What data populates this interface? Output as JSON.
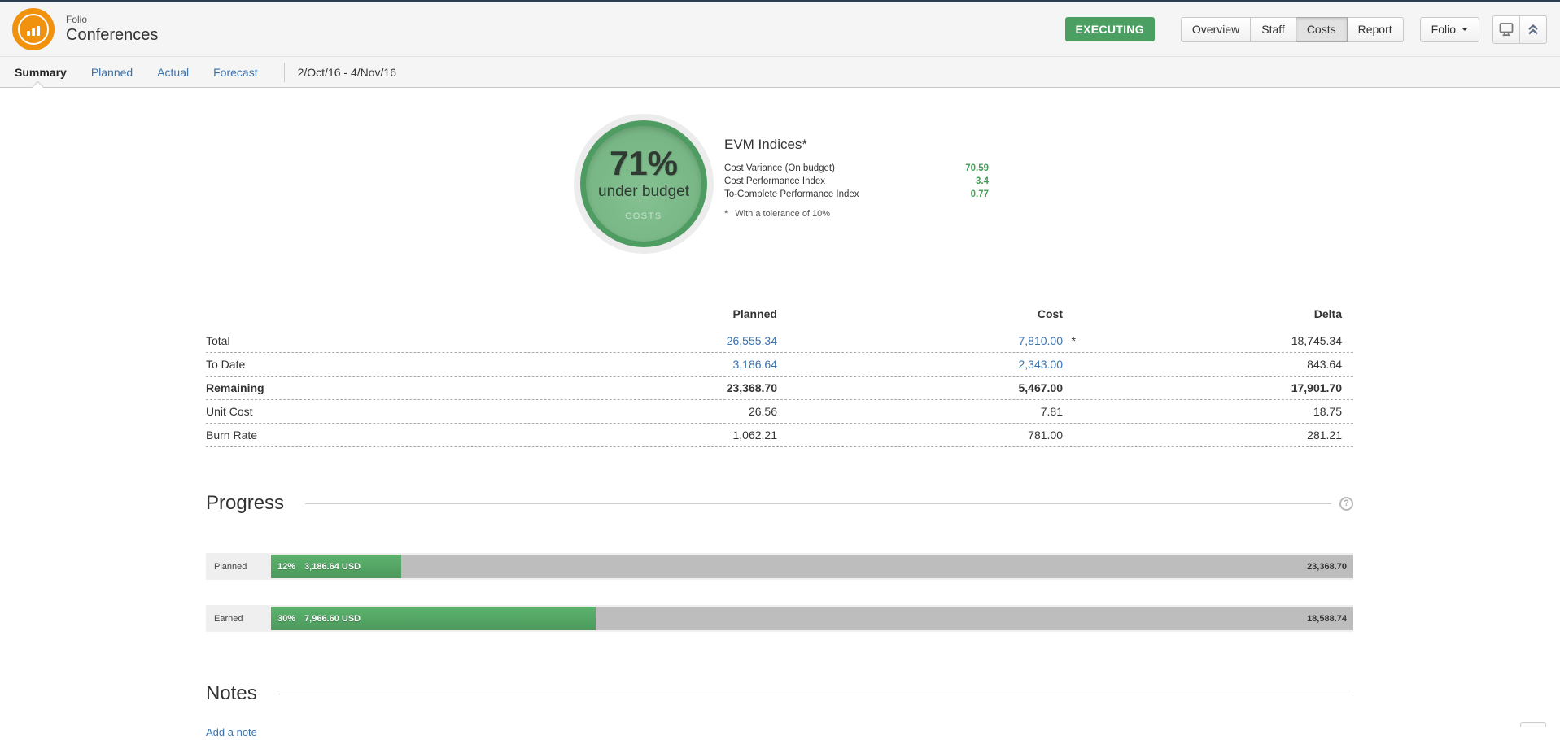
{
  "header": {
    "app_label": "Folio",
    "title": "Conferences",
    "status_badge": "EXECUTING",
    "nav_buttons": {
      "overview": "Overview",
      "staff": "Staff",
      "costs": "Costs",
      "report": "Report"
    },
    "active_nav": "Costs",
    "menu_button_label": "Folio",
    "icons": {
      "display": "monitor-icon",
      "collapse": "double-chevron-up-icon"
    }
  },
  "tabs": {
    "summary": "Summary",
    "planned": "Planned",
    "actual": "Actual",
    "forecast": "Forecast",
    "active": "Summary",
    "date_range": "2/Oct/16  - 4/Nov/16"
  },
  "gauge": {
    "value": "71%",
    "label": "under budget",
    "category": "COSTS"
  },
  "evm": {
    "title": "EVM Indices*",
    "rows": [
      {
        "label": "Cost Variance (On budget)",
        "value": "70.59"
      },
      {
        "label": "Cost Performance Index",
        "value": "3.4"
      },
      {
        "label": "To-Complete Performance Index",
        "value": "0.77"
      }
    ],
    "footnote_star": "*",
    "footnote": "With a tolerance of 10%"
  },
  "cost_table": {
    "columns": {
      "planned": "Planned",
      "cost": "Cost",
      "delta": "Delta"
    },
    "rows": [
      {
        "label": "Total",
        "planned": "26,555.34",
        "cost": "7,810.00",
        "cost_note": "*",
        "delta": "18,745.34"
      },
      {
        "label": "To Date",
        "planned": "3,186.64",
        "cost": "2,343.00",
        "delta": "843.64"
      },
      {
        "label": "Remaining",
        "planned": "23,368.70",
        "cost": "5,467.00",
        "delta": "17,901.70"
      },
      {
        "label": "Unit Cost",
        "planned": "26.56",
        "cost": "7.81",
        "delta": "18.75"
      },
      {
        "label": "Burn Rate",
        "planned": "1,062.21",
        "cost": "781.00",
        "delta": "281.21"
      }
    ]
  },
  "progress": {
    "title": "Progress",
    "help_icon": "?",
    "bars": [
      {
        "label": "Planned",
        "pct_label": "12%",
        "amount": "3,186.64 USD",
        "remaining": "23,368.70",
        "fill_pct": 12
      },
      {
        "label": "Earned",
        "pct_label": "30%",
        "amount": "7,966.60 USD",
        "remaining": "18,588.74",
        "fill_pct": 30
      }
    ]
  },
  "notes": {
    "title": "Notes",
    "add_label": "Add a note"
  },
  "colors": {
    "accent_green": "#4c9f63",
    "gauge_green": "#7db989",
    "link_blue": "#3b73af",
    "logo_orange": "#f0920e",
    "topbar_navy": "#2e3d4f"
  }
}
